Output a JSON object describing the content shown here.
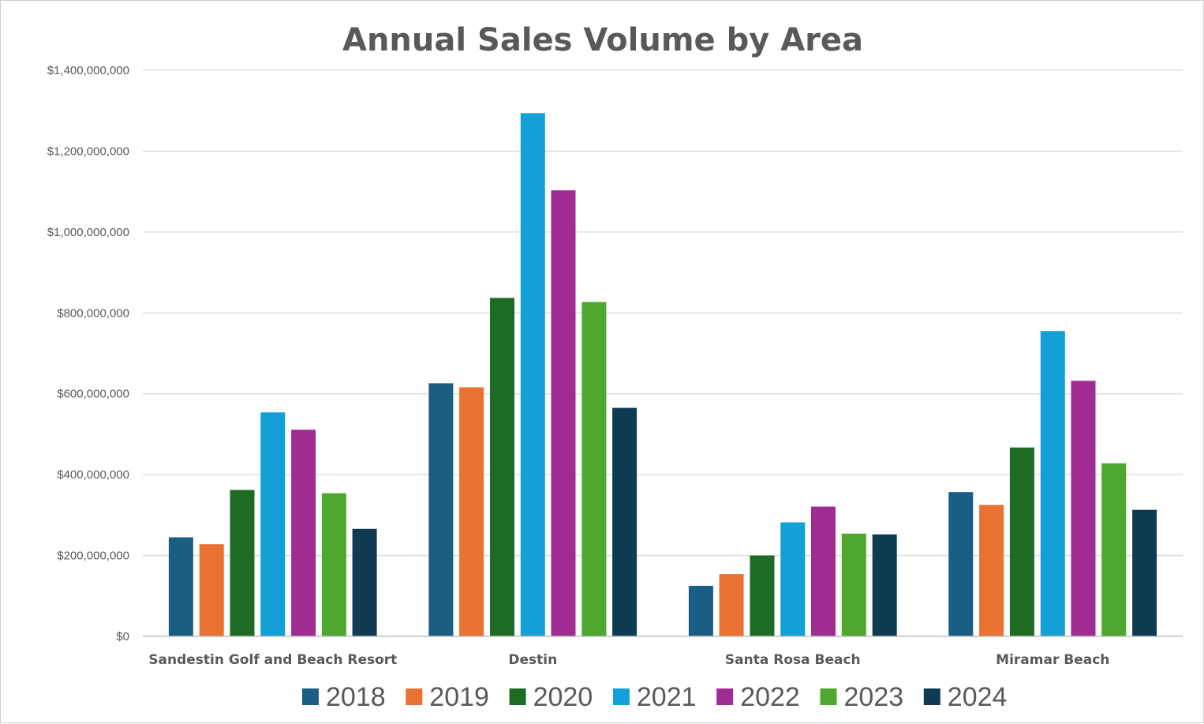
{
  "chart_data": {
    "type": "bar",
    "title": "Annual Sales Volume by Area",
    "xlabel": "",
    "ylabel": "",
    "categories": [
      "Sandestin Golf and Beach Resort",
      "Destin",
      "Santa Rosa Beach",
      "Miramar Beach"
    ],
    "series": [
      {
        "name": "2018",
        "color": "#1a5e84",
        "values": [
          245000000,
          626000000,
          125000000,
          357000000
        ]
      },
      {
        "name": "2019",
        "color": "#e97132",
        "values": [
          228000000,
          616000000,
          154000000,
          325000000
        ]
      },
      {
        "name": "2020",
        "color": "#1e6b25",
        "values": [
          362000000,
          837000000,
          200000000,
          467000000
        ]
      },
      {
        "name": "2021",
        "color": "#12a0d7",
        "values": [
          554000000,
          1294000000,
          282000000,
          755000000
        ]
      },
      {
        "name": "2022",
        "color": "#a02b93",
        "values": [
          511000000,
          1103000000,
          321000000,
          632000000
        ]
      },
      {
        "name": "2023",
        "color": "#4ea72e",
        "values": [
          354000000,
          827000000,
          254000000,
          428000000
        ]
      },
      {
        "name": "2024",
        "color": "#0e3a52",
        "values": [
          266000000,
          565000000,
          252000000,
          313000000
        ]
      }
    ],
    "ylim": [
      0,
      1400000000
    ],
    "yticks": [
      0,
      200000000,
      400000000,
      600000000,
      800000000,
      1000000000,
      1200000000,
      1400000000
    ],
    "ytick_labels": [
      "$0",
      "$200,000,000",
      "$400,000,000",
      "$600,000,000",
      "$800,000,000",
      "$1,000,000,000",
      "$1,200,000,000",
      "$1,400,000,000"
    ],
    "grid": true,
    "legend_position": "bottom"
  }
}
